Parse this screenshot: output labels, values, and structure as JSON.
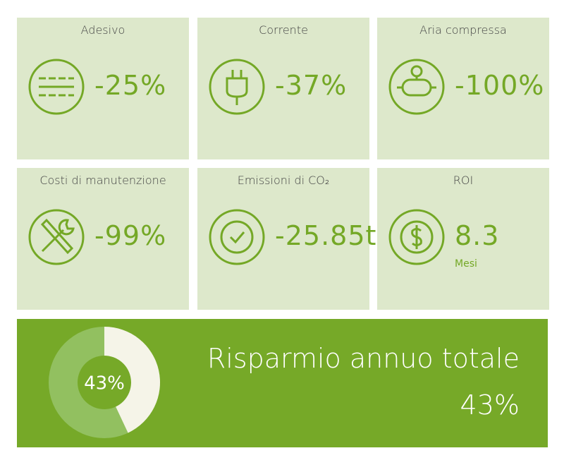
{
  "cards": [
    {
      "title": "Adesivo",
      "value": "-25%"
    },
    {
      "title": "Corrente",
      "value": "-37%"
    },
    {
      "title": "Aria compressa",
      "value": "-100%"
    },
    {
      "title": "Costi di manutenzione",
      "value": "-99%"
    },
    {
      "title": "Emissioni di CO₂",
      "value": "-25.85t"
    },
    {
      "title": "ROI",
      "value": "8.3",
      "unit": "Mesi"
    }
  ],
  "summary": {
    "title": "Risparmio annuo totale",
    "value": 43,
    "value_label": "43%"
  }
}
